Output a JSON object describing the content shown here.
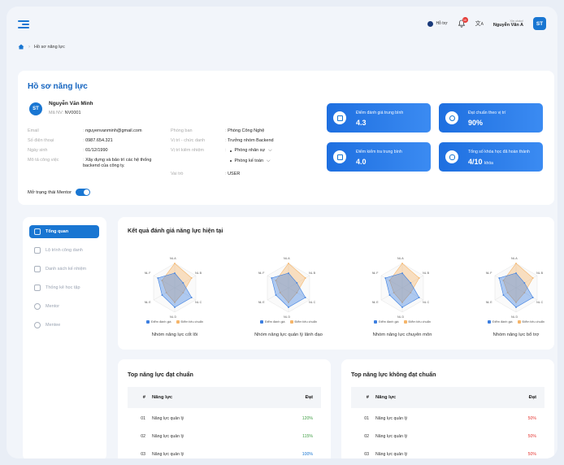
{
  "header": {
    "help_label": "Hỗ trợ",
    "notification_count": "10",
    "greeting": "Xin chào!",
    "user_name": "Nguyễn Văn A",
    "avatar_initials": "ST"
  },
  "breadcrumb": {
    "current": "Hồ sơ năng lực"
  },
  "profile": {
    "title": "Hồ sơ năng lực",
    "avatar_initials": "ST",
    "name": "Nguyễn Văn Minh",
    "id_label": "Mã NV:",
    "id_value": "NV0001",
    "fields_left": [
      {
        "label": "Email",
        "value": "nguyenvanminh@gmail.com"
      },
      {
        "label": "Số điện thoại",
        "value": "0987.654.321"
      },
      {
        "label": "Ngày sinh",
        "value": "01/12/1990"
      },
      {
        "label": "Mô tả công việc",
        "value": "Xây dựng và bảo trì các hệ thống backend của công ty."
      }
    ],
    "fields_right": [
      {
        "label": "Phòng ban",
        "value": "Phòng Công Nghệ"
      },
      {
        "label": "Vị trí - chức danh",
        "value": "Trưởng nhóm Backend"
      },
      {
        "label": "Vị trí kiêm nhiệm",
        "values": [
          "Phòng nhân sự",
          "Phòng kế toán"
        ]
      },
      {
        "label": "Vai trò",
        "value": "USER"
      }
    ],
    "mentor_label": "Mở trạng thái Mentor",
    "mentor_on": true
  },
  "stats": [
    {
      "label": "Điểm đánh giá trung bình",
      "value": "4.3",
      "icon": "edit-doc-icon"
    },
    {
      "label": "Đạt chuẩn theo vị trí",
      "value": "90%",
      "icon": "ribbon-icon"
    },
    {
      "label": "Điểm kiểm tra trung bình",
      "value": "4.0",
      "icon": "edit-doc-icon"
    },
    {
      "label": "Tổng số khóa học đã hoàn thành",
      "value": "4/10",
      "unit": "khóa",
      "icon": "course-icon"
    }
  ],
  "sidebar": {
    "items": [
      {
        "label": "Tổng quan",
        "active": true,
        "icon": "grid-icon"
      },
      {
        "label": "Lộ trình công danh",
        "icon": "chart-icon"
      },
      {
        "label": "Danh sách kế nhiệm",
        "icon": "users-icon"
      },
      {
        "label": "Thống kê học tập",
        "icon": "chart-icon"
      },
      {
        "label": "Mentor",
        "icon": "user-icon"
      },
      {
        "label": "Mentee",
        "icon": "user-icon"
      }
    ]
  },
  "radar_section": {
    "title": "Kết quả đánh giá năng lực hiện tại"
  },
  "chart_data": [
    {
      "type": "radar",
      "title": "Nhóm năng lực cốt lõi",
      "axes": [
        "NL A",
        "NL B",
        "NL C",
        "NL D",
        "NL E",
        "NL F"
      ],
      "series": [
        {
          "name": "Điểm đánh giá",
          "values": [
            3,
            2,
            4,
            4,
            3,
            4
          ]
        },
        {
          "name": "Điểm tiêu chuẩn",
          "values": [
            5,
            4,
            2,
            3,
            2,
            3
          ]
        }
      ],
      "max": 5
    },
    {
      "type": "radar",
      "title": "Nhóm năng lực quản lý lãnh đạo",
      "axes": [
        "NL A",
        "NL B",
        "NL C",
        "NL D",
        "NL E",
        "NL F"
      ],
      "series": [
        {
          "name": "Điểm đánh giá",
          "values": [
            3,
            2,
            4,
            4,
            3,
            4
          ]
        },
        {
          "name": "Điểm tiêu chuẩn",
          "values": [
            5,
            4,
            2,
            3,
            2,
            3
          ]
        }
      ],
      "max": 5
    },
    {
      "type": "radar",
      "title": "Nhóm năng lực chuyên môn",
      "axes": [
        "NL A",
        "NL B",
        "NL C",
        "NL D",
        "NL E",
        "NL F"
      ],
      "series": [
        {
          "name": "Điểm đánh giá",
          "values": [
            3,
            2,
            4,
            4,
            3,
            4
          ]
        },
        {
          "name": "Điểm tiêu chuẩn",
          "values": [
            5,
            4,
            2,
            3,
            2,
            3
          ]
        }
      ],
      "max": 5
    },
    {
      "type": "radar",
      "title": "Nhóm năng lực bổ trợ",
      "axes": [
        "NL A",
        "NL B",
        "NL C",
        "NL D",
        "NL E",
        "NL F"
      ],
      "series": [
        {
          "name": "Điểm đánh giá",
          "values": [
            3,
            2,
            4,
            4,
            3,
            4
          ]
        },
        {
          "name": "Điểm tiêu chuẩn",
          "values": [
            5,
            4,
            2,
            3,
            2,
            3
          ]
        }
      ],
      "max": 5
    }
  ],
  "colors": {
    "series_a": "#3d7fe0",
    "series_b": "#f5b56a",
    "pass": "#43a047",
    "fail": "#e53935",
    "accent": "#1976d2"
  },
  "table_pass": {
    "title": "Top năng lực đạt chuẩn",
    "headers": [
      "#",
      "Năng lực",
      "Đạt"
    ],
    "rows": [
      [
        "01",
        "Năng lực quản lý",
        "120%"
      ],
      [
        "02",
        "Năng lực quản lý",
        "115%"
      ],
      [
        "03",
        "Năng lực quản lý",
        "100%"
      ]
    ]
  },
  "table_fail": {
    "title": "Top năng lực không đạt chuẩn",
    "headers": [
      "#",
      "Năng lực",
      "Đạt"
    ],
    "rows": [
      [
        "01",
        "Năng lực quản lý",
        "50%"
      ],
      [
        "02",
        "Năng lực quản lý",
        "50%"
      ],
      [
        "03",
        "Năng lực quản lý",
        "50%"
      ]
    ]
  }
}
